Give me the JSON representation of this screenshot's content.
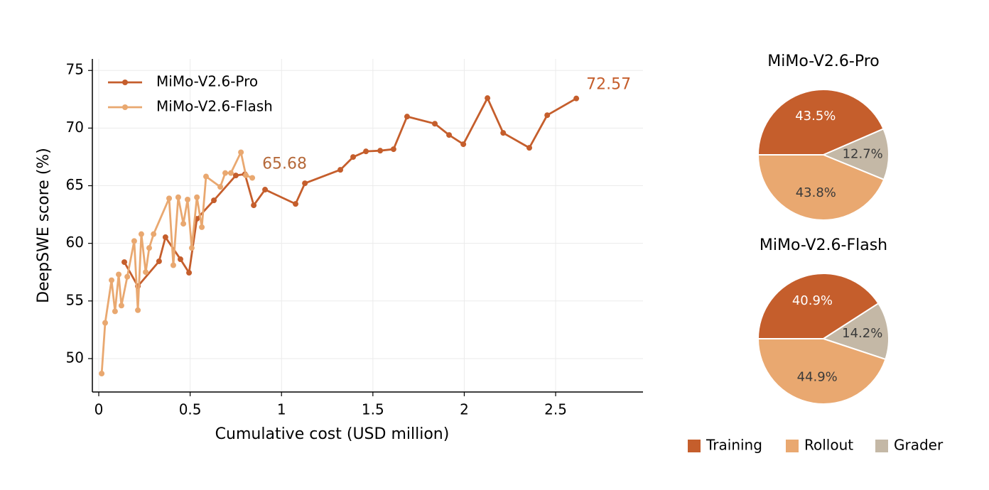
{
  "chart_data": [
    {
      "type": "line",
      "xlabel": "Cumulative cost (USD million)",
      "ylabel": "DeepSWE score (%)",
      "xlim": [
        -0.035,
        2.978
      ],
      "ylim": [
        47.1,
        76
      ],
      "xticks": [
        0,
        0.5,
        1,
        1.5,
        2,
        2.5
      ],
      "yticks": [
        50,
        55,
        60,
        65,
        70,
        75
      ],
      "grid": true,
      "legend": "upper left",
      "series": [
        {
          "name": "MiMo-V2.6-Pro",
          "color": "#c55e2c",
          "x": [
            0.14,
            0.214,
            0.33,
            0.365,
            0.447,
            0.494,
            0.537,
            0.63,
            0.75,
            0.8,
            0.848,
            0.91,
            1.077,
            1.128,
            1.322,
            1.392,
            1.462,
            1.54,
            1.613,
            1.687,
            1.839,
            1.917,
            1.995,
            2.127,
            2.213,
            2.356,
            2.454,
            2.613
          ],
          "values": [
            58.37,
            56.28,
            58.44,
            60.53,
            58.62,
            57.45,
            62.13,
            63.73,
            65.89,
            66.0,
            63.3,
            64.66,
            63.42,
            65.21,
            66.38,
            67.49,
            67.98,
            68.04,
            68.17,
            71.0,
            70.38,
            69.4,
            68.6,
            72.6,
            69.58,
            68.29,
            71.12,
            72.57
          ]
        },
        {
          "name": "MiMo-V2.6-Flash",
          "color": "#e9a870",
          "x": [
            0.016,
            0.035,
            0.07,
            0.089,
            0.109,
            0.124,
            0.156,
            0.194,
            0.214,
            0.233,
            0.257,
            0.276,
            0.3,
            0.385,
            0.408,
            0.435,
            0.463,
            0.486,
            0.509,
            0.537,
            0.564,
            0.587,
            0.665,
            0.692,
            0.723,
            0.778,
            0.805,
            0.84
          ],
          "values": [
            48.7,
            53.1,
            56.8,
            54.1,
            57.3,
            54.6,
            57.1,
            60.2,
            54.2,
            60.8,
            57.5,
            59.6,
            60.8,
            63.9,
            58.1,
            64.0,
            61.7,
            63.8,
            59.6,
            64.0,
            61.4,
            65.8,
            64.9,
            66.1,
            66.1,
            67.9,
            65.9,
            65.68
          ]
        }
      ]
    },
    {
      "type": "pie",
      "title": "MiMo-V2.6-Pro",
      "categories": [
        "Training",
        "Rollout",
        "Grader"
      ],
      "colors": [
        "#c55e2c",
        "#e9a870",
        "#c4b8a6"
      ],
      "values": [
        43.5,
        43.8,
        12.7
      ],
      "value_labels": [
        "43.5%",
        "43.8%",
        "12.7%"
      ]
    },
    {
      "type": "pie",
      "title": "MiMo-V2.6-Flash",
      "categories": [
        "Training",
        "Rollout",
        "Grader"
      ],
      "colors": [
        "#c55e2c",
        "#e9a870",
        "#c4b8a6"
      ],
      "values": [
        40.9,
        44.9,
        14.2
      ],
      "value_labels": [
        "40.9%",
        "44.9%",
        "14.2%"
      ]
    }
  ]
}
